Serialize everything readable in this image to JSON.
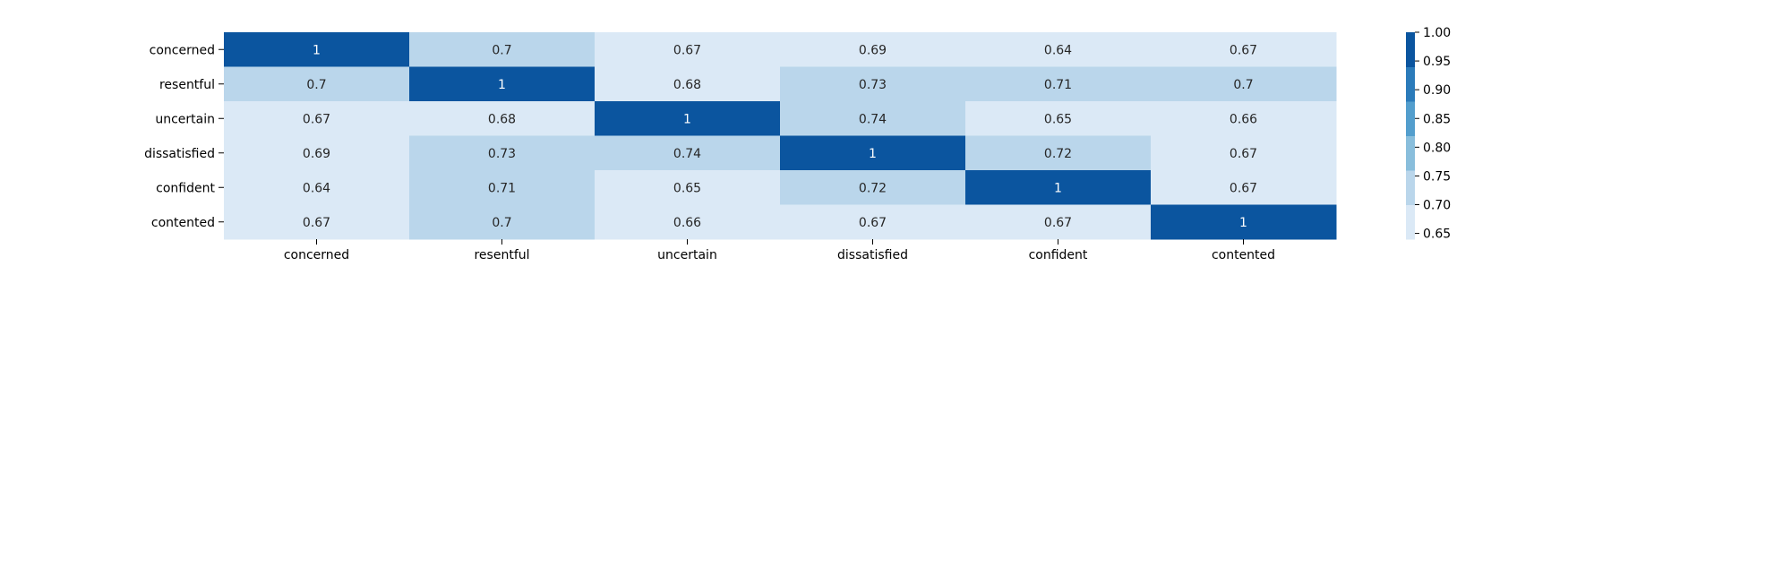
{
  "chart_data": {
    "type": "heatmap",
    "rows": [
      "concerned",
      "resentful",
      "uncertain",
      "dissatisfied",
      "confident",
      "contented"
    ],
    "columns": [
      "concerned",
      "resentful",
      "uncertain",
      "dissatisfied",
      "confident",
      "contented"
    ],
    "values": [
      [
        1,
        0.7,
        0.67,
        0.69,
        0.64,
        0.67
      ],
      [
        0.7,
        1,
        0.68,
        0.73,
        0.71,
        0.7
      ],
      [
        0.67,
        0.68,
        1,
        0.74,
        0.65,
        0.66
      ],
      [
        0.69,
        0.73,
        0.74,
        1,
        0.72,
        0.67
      ],
      [
        0.64,
        0.71,
        0.65,
        0.72,
        1,
        0.67
      ],
      [
        0.67,
        0.7,
        0.66,
        0.67,
        0.67,
        1
      ]
    ],
    "colorbar": {
      "range": [
        0.64,
        1.0
      ],
      "ticks": [
        1.0,
        0.95,
        0.9,
        0.85,
        0.8,
        0.75,
        0.7,
        0.65
      ],
      "tick_labels": [
        "1.00",
        "0.95",
        "0.90",
        "0.85",
        "0.80",
        "0.75",
        "0.70",
        "0.65"
      ],
      "levels": [
        {
          "min": 0.64,
          "max": 0.7,
          "color": "#dbe9f6"
        },
        {
          "min": 0.7,
          "max": 0.76,
          "color": "#bad6eb"
        },
        {
          "min": 0.76,
          "max": 0.82,
          "color": "#89bedc"
        },
        {
          "min": 0.82,
          "max": 0.88,
          "color": "#539ecd"
        },
        {
          "min": 0.88,
          "max": 0.94,
          "color": "#2b7bba"
        },
        {
          "min": 0.94,
          "max": 1.0,
          "color": "#0b559f"
        }
      ]
    },
    "colormap": "Blues (discrete, 6 levels)",
    "annotation_color_light": "#ffffff",
    "annotation_color_dark": "#262626"
  }
}
